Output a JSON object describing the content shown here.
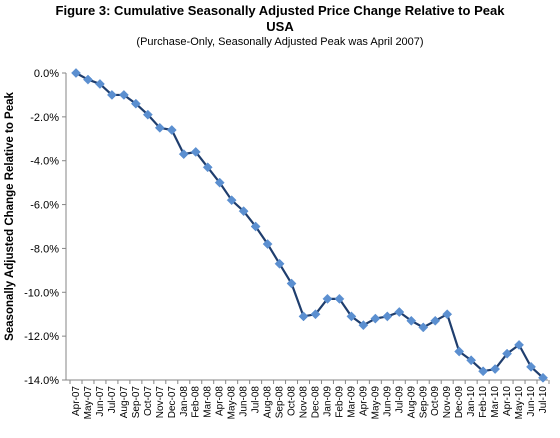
{
  "chart_data": {
    "type": "line",
    "title_line1": "Figure 3: Cumulative Seasonally Adjusted Price Change Relative to Peak",
    "title_line2": "USA",
    "subtitle": "(Purchase-Only, Seasonally Adjusted Peak was April 2007)",
    "xlabel": "",
    "ylabel": "Seasonally Adjusted Change Relative to Peak",
    "ylim": [
      -14.0,
      0.0
    ],
    "yticks": [
      "0.0%",
      "-2.0%",
      "-4.0%",
      "-6.0%",
      "-8.0%",
      "-10.0%",
      "-12.0%",
      "-14.0%"
    ],
    "ytick_values": [
      0,
      -2,
      -4,
      -6,
      -8,
      -10,
      -12,
      -14
    ],
    "grid": false,
    "legend": "none",
    "line_color": "#1f3e6e",
    "marker_color": "#5b8fd0",
    "categories": [
      "Apr-07",
      "May-07",
      "Jun-07",
      "Jul-07",
      "Aug-07",
      "Sep-07",
      "Oct-07",
      "Nov-07",
      "Dec-07",
      "Jan-08",
      "Feb-08",
      "Mar-08",
      "Apr-08",
      "May-08",
      "Jun-08",
      "Jul-08",
      "Aug-08",
      "Sep-08",
      "Oct-08",
      "Nov-08",
      "Dec-08",
      "Jan-09",
      "Feb-09",
      "Mar-09",
      "Apr-09",
      "May-09",
      "Jun-09",
      "Jul-09",
      "Aug-09",
      "Sep-09",
      "Oct-09",
      "Nov-09",
      "Dec-09",
      "Jan-10",
      "Feb-10",
      "Mar-10",
      "Apr-10",
      "May-10",
      "Jun-10",
      "Jul-10"
    ],
    "values": [
      0.0,
      -0.3,
      -0.5,
      -1.0,
      -1.0,
      -1.4,
      -1.9,
      -2.5,
      -2.6,
      -3.7,
      -3.6,
      -4.3,
      -5.0,
      -5.8,
      -6.3,
      -7.0,
      -7.8,
      -8.7,
      -9.6,
      -11.1,
      -11.0,
      -10.3,
      -10.3,
      -11.1,
      -11.5,
      -11.2,
      -11.1,
      -10.9,
      -11.3,
      -11.6,
      -11.3,
      -11.0,
      -12.7,
      -13.1,
      -13.6,
      -13.5,
      -12.8,
      -12.4,
      -13.4,
      -13.9
    ]
  }
}
